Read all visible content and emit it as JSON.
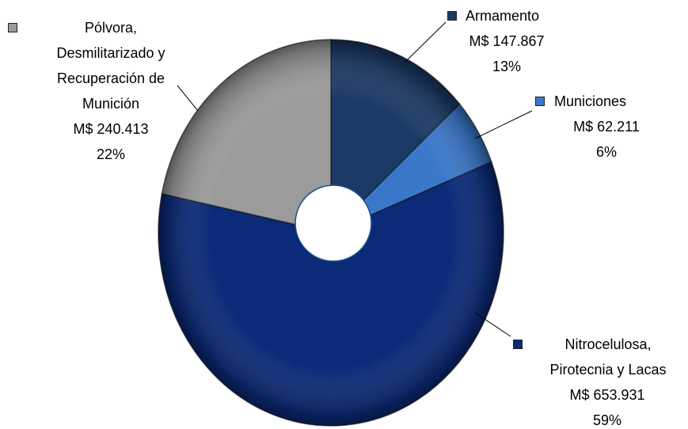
{
  "chart_data": {
    "type": "pie",
    "categories": [
      "Armamento",
      "Municiones",
      "Nitrocelulosa, Pirotecnia y Lacas",
      "Pólvora, Desmilitarizado y Recuperación de Munición"
    ],
    "values": [
      147867,
      62211,
      653931,
      240413
    ],
    "value_labels": [
      "M$ 147.867",
      "M$ 62.211",
      "M$ 653.931",
      "M$ 240.413"
    ],
    "percents": [
      13,
      6,
      59,
      22
    ],
    "percent_labels": [
      "13%",
      "6%",
      "59%",
      "22%"
    ],
    "colors": [
      "#1b3a66",
      "#3a78c9",
      "#0b2a78",
      "#9b9b9b"
    ]
  }
}
